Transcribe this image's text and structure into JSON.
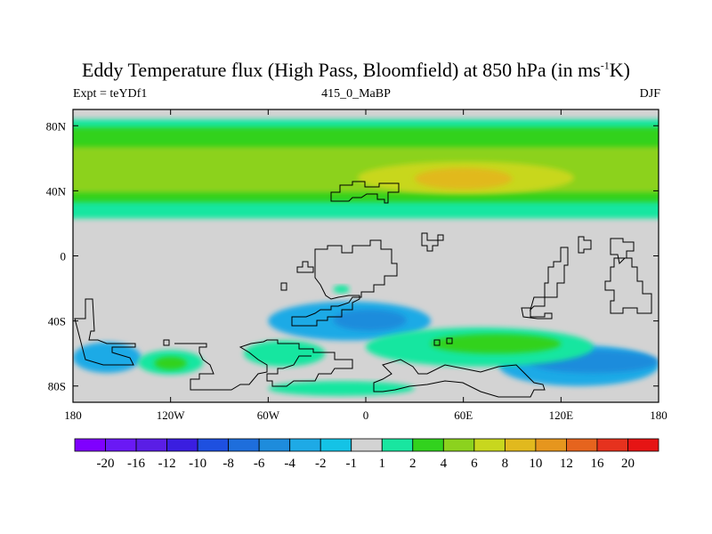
{
  "title": {
    "main": "Eddy Temperature flux (High Pass, Bloomfield) at 850 hPa (in ms",
    "sup": "-1",
    "tail": "K)"
  },
  "subtitle": {
    "left": "Expt = teYDf1",
    "center": "415_0_MaBP",
    "right": "DJF"
  },
  "chart_data": {
    "type": "heatmap",
    "title": "Eddy Temperature flux (High Pass, Bloomfield) at 850 hPa (in ms-1K)",
    "xlim": [
      -180,
      180
    ],
    "ylim": [
      -90,
      90
    ],
    "x_ticks": [
      {
        "value": -180,
        "label": "180"
      },
      {
        "value": -120,
        "label": "120W"
      },
      {
        "value": -60,
        "label": "60W"
      },
      {
        "value": 0,
        "label": "0"
      },
      {
        "value": 60,
        "label": "60E"
      },
      {
        "value": 120,
        "label": "120E"
      },
      {
        "value": 180,
        "label": "180"
      }
    ],
    "y_ticks": [
      {
        "value": 80,
        "label": "80N"
      },
      {
        "value": 40,
        "label": "40N"
      },
      {
        "value": 0,
        "label": "0"
      },
      {
        "value": -40,
        "label": "40S"
      },
      {
        "value": -80,
        "label": "80S"
      }
    ],
    "background_color": "#d3d3d3",
    "colorbar": {
      "labels": [
        "-20",
        "-16",
        "-12",
        "-10",
        "-8",
        "-6",
        "-4",
        "-2",
        "-1",
        "1",
        "2",
        "4",
        "6",
        "8",
        "10",
        "12",
        "16",
        "20"
      ],
      "colors": [
        "#7f00ff",
        "#6a19f5",
        "#5a1ee6",
        "#3a1ee0",
        "#1e50e0",
        "#1e6edc",
        "#1e8cdc",
        "#1eaae6",
        "#14c3e6",
        "#d3d3d3",
        "#19e6a0",
        "#32d21e",
        "#8cd21e",
        "#c8d71e",
        "#e1b91e",
        "#e6961e",
        "#e6641e",
        "#e6321e",
        "#e61414"
      ]
    },
    "regions": [
      {
        "level": "2",
        "color": "#19e6a0",
        "lon": [
          -180,
          180
        ],
        "lat": [
          23,
          84
        ]
      },
      {
        "level": "4",
        "color": "#32d21e",
        "lon": [
          -180,
          180
        ],
        "lat": [
          33,
          79
        ]
      },
      {
        "level": "6",
        "color": "#8cd21e",
        "lon": [
          -180,
          180
        ],
        "lat": [
          39,
          67
        ]
      },
      {
        "level": "8",
        "color": "#c8d71e",
        "lon": [
          -5,
          128
        ],
        "lat": [
          38,
          58
        ]
      },
      {
        "level": "10",
        "color": "#e1b91e",
        "lon": [
          30,
          90
        ],
        "lat": [
          41,
          54
        ]
      },
      {
        "level": "-2",
        "color": "#1eaae6",
        "lon": [
          -60,
          40
        ],
        "lat": [
          -52,
          -28
        ]
      },
      {
        "level": "-4",
        "color": "#1e8cdc",
        "lon": [
          -20,
          25
        ],
        "lat": [
          -46,
          -33
        ]
      },
      {
        "level": "-2",
        "color": "#1eaae6",
        "lon": [
          -180,
          -138
        ],
        "lat": [
          -72,
          -53
        ]
      },
      {
        "level": "-2",
        "color": "#1eaae6",
        "lon": [
          82,
          180
        ],
        "lat": [
          -80,
          -55
        ]
      },
      {
        "level": "-4",
        "color": "#1e8cdc",
        "lon": [
          100,
          180
        ],
        "lat": [
          -72,
          -58
        ]
      },
      {
        "level": "2",
        "color": "#19e6a0",
        "lon": [
          -140,
          -100
        ],
        "lat": [
          -73,
          -58
        ]
      },
      {
        "level": "4",
        "color": "#32d21e",
        "lon": [
          -130,
          -110
        ],
        "lat": [
          -70,
          -62
        ]
      },
      {
        "level": "2",
        "color": "#19e6a0",
        "lon": [
          -75,
          -25
        ],
        "lat": [
          -68,
          -52
        ]
      },
      {
        "level": "2",
        "color": "#19e6a0",
        "lon": [
          0,
          140
        ],
        "lat": [
          -68,
          -44
        ]
      },
      {
        "level": "4",
        "color": "#32d21e",
        "lon": [
          40,
          120
        ],
        "lat": [
          -60,
          -48
        ]
      },
      {
        "level": "2",
        "color": "#19e6a0",
        "lon": [
          -60,
          30
        ],
        "lat": [
          -86,
          -77
        ]
      },
      {
        "level": "2",
        "color": "#19e6a0",
        "lon": [
          -20,
          -10
        ],
        "lat": [
          -23,
          -18
        ]
      }
    ]
  }
}
